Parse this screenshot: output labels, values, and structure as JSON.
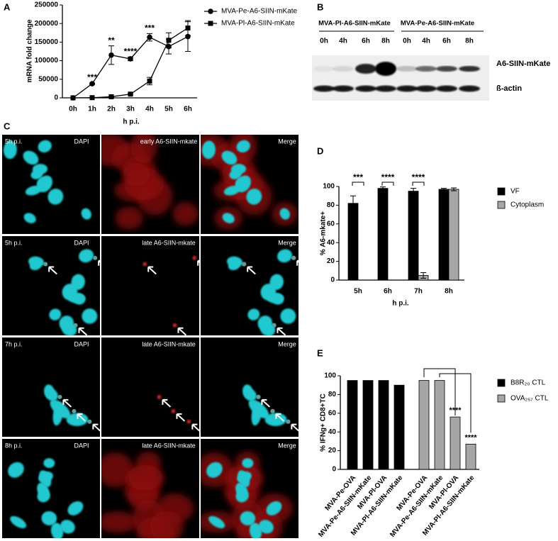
{
  "panel_labels": [
    "A",
    "B",
    "C",
    "D",
    "E"
  ],
  "chart_data": [
    {
      "type": "line",
      "y_label": "mRNA fold change",
      "x_label": "h p.i.",
      "categories": [
        "0h",
        "1h",
        "2h",
        "3h",
        "4h",
        "5h",
        "6h"
      ],
      "series": [
        {
          "name": "MVA-Pe-A6-SIIN-mKate",
          "color": "#000000",
          "marker": "circle",
          "values": [
            0,
            38000,
            115000,
            105000,
            163000,
            138000,
            165000
          ],
          "errors": [
            0,
            2000,
            25000,
            5000,
            10000,
            20000,
            40000
          ]
        },
        {
          "name": "MVA-Pl-A6-SIIN-mKate",
          "color": "#000000",
          "marker": "square",
          "values": [
            0,
            500,
            3000,
            10000,
            45000,
            155000,
            188000
          ],
          "errors": [
            0,
            500,
            1000,
            2000,
            10000,
            20000,
            20000
          ]
        }
      ],
      "annotations": [
        null,
        "***",
        "**",
        "****",
        "***",
        null,
        null
      ],
      "ylim": [
        0,
        250000
      ],
      "yticks": [
        0,
        50000,
        100000,
        150000,
        200000,
        250000
      ],
      "legend": "top-right"
    },
    {
      "type": "bar",
      "y_label": "% A6-mkate+",
      "x_label": "h p.i.",
      "categories": [
        "5h",
        "6h",
        "7h",
        "8h"
      ],
      "series": [
        {
          "name": "VF",
          "color": "#000000",
          "values": [
            82,
            98,
            95,
            97
          ],
          "errors": [
            8,
            1.5,
            3,
            1
          ]
        },
        {
          "name": "Cytoplasm",
          "color": "#a6a6a6",
          "values": [
            0,
            0,
            5,
            97
          ],
          "errors": [
            0,
            0,
            3,
            1.5
          ]
        }
      ],
      "annotations": [
        "***",
        "****",
        "****",
        null
      ],
      "ylim": [
        0,
        100
      ],
      "yticks": [
        0,
        20,
        40,
        60,
        80,
        100
      ],
      "legend": "right"
    },
    {
      "type": "bar",
      "y_label": "% IFNg+ CD8+TC",
      "categories": [
        "MVA-Pe-OVA",
        "MVA-Pe-A6-SIIN-mKate",
        "MVA-Pl-OVA",
        "MVA-Pl-A6-SIIN-mKate",
        "MVA-Pe-OVA",
        "MVA-Pe-A6-SIIN-mKate",
        "MVA-Pl-OVA",
        "MVA-Pl-A6-SIIN-mKate"
      ],
      "series": [
        {
          "name": "B8R₂₀ CTL",
          "color": "#000000",
          "values": [
            95,
            95,
            95,
            90,
            null,
            null,
            null,
            null
          ]
        },
        {
          "name": "OVA₂₅₇ CTL",
          "color": "#a6a6a6",
          "values": [
            null,
            null,
            null,
            null,
            95,
            95,
            56,
            27
          ]
        }
      ],
      "annotations": [
        null,
        null,
        null,
        null,
        null,
        null,
        "****",
        "****"
      ],
      "ylim": [
        0,
        100
      ],
      "yticks": [
        0,
        20,
        40,
        60,
        80,
        100
      ],
      "legend": "right"
    }
  ],
  "blot": {
    "groups": [
      {
        "name": "MVA-Pl-A6-SIIN-mKate",
        "times": [
          "0h",
          "4h",
          "6h",
          "8h"
        ]
      },
      {
        "name": "MVA-Pe-A6-SIIN-mKate",
        "times": [
          "0h",
          "4h",
          "6h",
          "8h"
        ]
      }
    ],
    "bands": [
      "A6-SIIN-mKate",
      "ß-actin"
    ]
  },
  "microscopy": {
    "rows": [
      {
        "time": "5h p.i.",
        "channels": [
          "DAPI",
          "early A6-SIIN-mkate",
          "Merge"
        ]
      },
      {
        "time": "5h p.i.",
        "channels": [
          "DAPI",
          "late A6-SIIN-mkate",
          "Merge"
        ]
      },
      {
        "time": "7h p.i.",
        "channels": [
          "DAPI",
          "late A6-SIIN-mkate",
          "Merge"
        ]
      },
      {
        "time": "8h p.i.",
        "channels": [
          "DAPI",
          "late A6-SIIN-mkate",
          "Merge"
        ]
      }
    ]
  }
}
